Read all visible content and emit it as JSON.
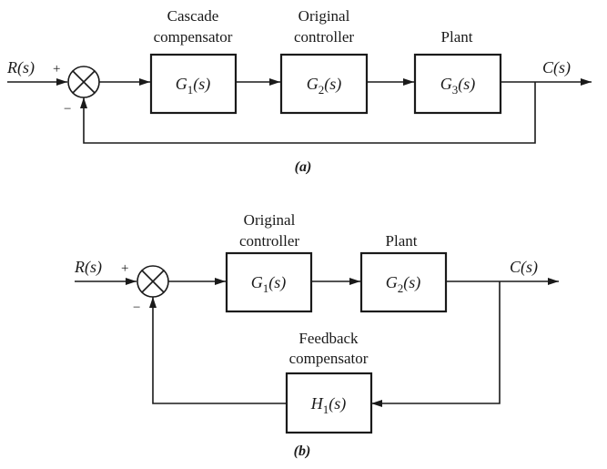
{
  "diagram_a": {
    "input_label": "R(s)",
    "output_label": "C(s)",
    "plus_sign": "+",
    "minus_sign": "−",
    "blocks": [
      {
        "title_line1": "Cascade",
        "title_line2": "compensator",
        "transfer": "G1(s)"
      },
      {
        "title_line1": "Original",
        "title_line2": "controller",
        "transfer": "G2(s)"
      },
      {
        "title_line1": "Plant",
        "title_line2": "",
        "transfer": "G3(s)"
      }
    ],
    "caption": "(a)"
  },
  "diagram_b": {
    "input_label": "R(s)",
    "output_label": "C(s)",
    "plus_sign": "+",
    "minus_sign": "−",
    "blocks": [
      {
        "title_line1": "Original",
        "title_line2": "controller",
        "transfer": "G1(s)"
      },
      {
        "title_line1": "Plant",
        "title_line2": "",
        "transfer": "G2(s)"
      }
    ],
    "feedback_block": {
      "title_line1": "Feedback",
      "title_line2": "compensator",
      "transfer": "H1(s)"
    },
    "caption": "(b)"
  }
}
